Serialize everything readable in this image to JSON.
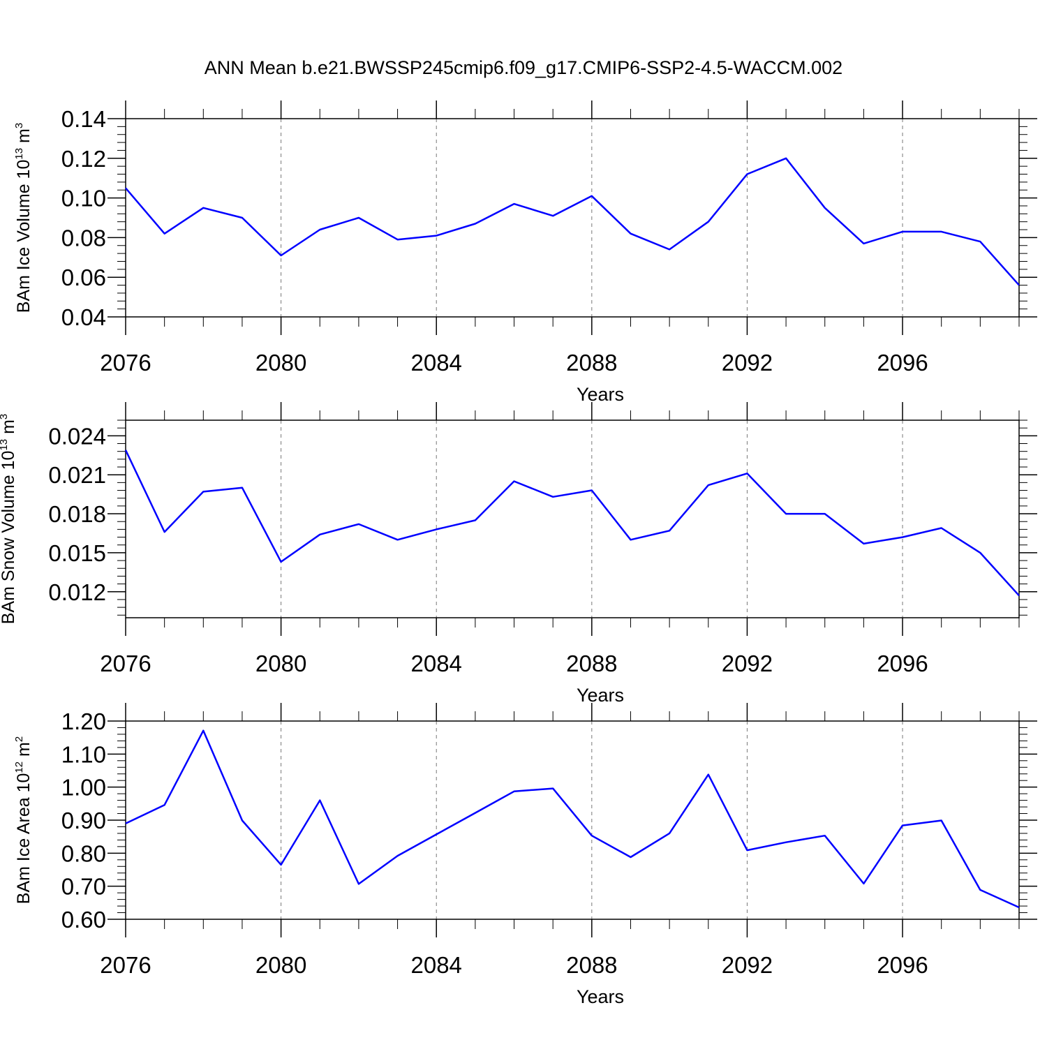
{
  "title": "ANN Mean b.e21.BWSSP245cmip6.f09_g17.CMIP6-SSP2-4.5-WACCM.002",
  "line_color": "#0000ff",
  "chart_data": [
    {
      "type": "line",
      "xlabel": "Years",
      "ylabel": {
        "text": "BAm Ice Volume 10",
        "exp": "13",
        "unit": " m",
        "unit_exp": "3"
      },
      "xlim": [
        2076,
        2099
      ],
      "ylim": [
        0.04,
        0.14
      ],
      "xticks": [
        2076,
        2080,
        2084,
        2088,
        2092,
        2096
      ],
      "xtick_labels": [
        "2076",
        "2080",
        "2084",
        "2088",
        "2092",
        "2096"
      ],
      "yticks": [
        0.04,
        0.06,
        0.08,
        0.1,
        0.12,
        0.14
      ],
      "ytick_labels": [
        "0.04",
        "0.06",
        "0.08",
        "0.10",
        "0.12",
        "0.14"
      ],
      "grid_x": "dashed at major ticks",
      "series": [
        {
          "x": [
            2076,
            2077,
            2078,
            2079,
            2080,
            2081,
            2082,
            2083,
            2084,
            2085,
            2086,
            2087,
            2088,
            2089,
            2090,
            2091,
            2092,
            2093,
            2094,
            2095,
            2096,
            2097,
            2098,
            2099
          ],
          "values": [
            0.105,
            0.082,
            0.095,
            0.09,
            0.071,
            0.084,
            0.09,
            0.079,
            0.081,
            0.087,
            0.097,
            0.091,
            0.101,
            0.082,
            0.074,
            0.088,
            0.112,
            0.12,
            0.095,
            0.077,
            0.083,
            0.083,
            0.078,
            0.056
          ]
        }
      ]
    },
    {
      "type": "line",
      "xlabel": "Years",
      "ylabel": {
        "text": "BAm Snow Volume 10",
        "exp": "13",
        "unit": " m",
        "unit_exp": "3"
      },
      "xlim": [
        2076,
        2099
      ],
      "ylim": [
        0.01,
        0.0252
      ],
      "xticks": [
        2076,
        2080,
        2084,
        2088,
        2092,
        2096
      ],
      "xtick_labels": [
        "2076",
        "2080",
        "2084",
        "2088",
        "2092",
        "2096"
      ],
      "yticks": [
        0.012,
        0.015,
        0.018,
        0.021,
        0.024
      ],
      "ytick_labels": [
        "0.012",
        "0.015",
        "0.018",
        "0.021",
        "0.024"
      ],
      "grid_x": "dashed at major ticks",
      "series": [
        {
          "x": [
            2076,
            2077,
            2078,
            2079,
            2080,
            2081,
            2082,
            2083,
            2084,
            2085,
            2086,
            2087,
            2088,
            2089,
            2090,
            2091,
            2092,
            2093,
            2094,
            2095,
            2096,
            2097,
            2098,
            2099
          ],
          "values": [
            0.0229,
            0.0166,
            0.0197,
            0.02,
            0.0143,
            0.0164,
            0.0172,
            0.016,
            0.0168,
            0.0175,
            0.0205,
            0.0193,
            0.0198,
            0.016,
            0.0167,
            0.0202,
            0.0211,
            0.018,
            0.018,
            0.0157,
            0.0162,
            0.0169,
            0.015,
            0.0117
          ]
        }
      ]
    },
    {
      "type": "line",
      "xlabel": "Years",
      "ylabel": {
        "text": "BAm Ice Area 10",
        "exp": "12",
        "unit": " m",
        "unit_exp": "2"
      },
      "xlim": [
        2076,
        2099
      ],
      "ylim": [
        0.6,
        1.2
      ],
      "xticks": [
        2076,
        2080,
        2084,
        2088,
        2092,
        2096
      ],
      "xtick_labels": [
        "2076",
        "2080",
        "2084",
        "2088",
        "2092",
        "2096"
      ],
      "yticks": [
        0.6,
        0.7,
        0.8,
        0.9,
        1.0,
        1.1,
        1.2
      ],
      "ytick_labels": [
        "0.60",
        "0.70",
        "0.80",
        "0.90",
        "1.00",
        "1.10",
        "1.20"
      ],
      "grid_x": "dashed at major ticks",
      "series": [
        {
          "x": [
            2076,
            2077,
            2078,
            2079,
            2080,
            2081,
            2082,
            2083,
            2084,
            2085,
            2086,
            2087,
            2088,
            2089,
            2090,
            2091,
            2092,
            2093,
            2094,
            2095,
            2096,
            2097,
            2098,
            2099
          ],
          "values": [
            0.89,
            0.946,
            1.171,
            0.899,
            0.765,
            0.96,
            0.707,
            0.792,
            0.857,
            0.922,
            0.987,
            0.996,
            0.853,
            0.788,
            0.86,
            1.038,
            0.809,
            0.833,
            0.853,
            0.708,
            0.884,
            0.899,
            0.689,
            0.636
          ]
        }
      ]
    }
  ]
}
